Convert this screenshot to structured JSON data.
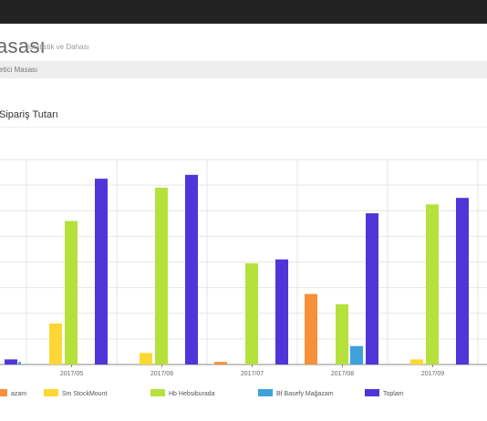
{
  "header": {
    "title": "asası",
    "subtitle": "istatistik ve Dahası"
  },
  "breadcrumb": {
    "text": "etici Masası"
  },
  "portlet": {
    "title": "Sipariş Tutarı"
  },
  "colors": {
    "topbar": "#222222",
    "breadcrumb_bg": "#eeeeee"
  },
  "chart_data": {
    "type": "bar",
    "title": "Sipariş Tutarı",
    "xlabel": "",
    "ylabel": "",
    "categories": [
      "2017/05",
      "2017/06",
      "2017/07",
      "2017/08",
      "2017/09"
    ],
    "y_gridline_count": 8,
    "ylim": [
      0,
      8
    ],
    "grid": true,
    "legend_position": "bottom",
    "series": [
      {
        "name": "azam",
        "color": "#f7903a",
        "values": [
          0,
          0,
          0.1,
          2.75,
          0
        ]
      },
      {
        "name": "Sm StockMount",
        "color": "#fdd835",
        "values": [
          1.6,
          0.45,
          0,
          0,
          0.2
        ]
      },
      {
        "name": "Hb Hebsiburada",
        "color": "#b5e13d",
        "values": [
          5.6,
          6.9,
          3.95,
          2.35,
          6.25
        ]
      },
      {
        "name": "Bf Basefy Mağazam",
        "color": "#3fa1dc",
        "values": [
          0,
          0,
          0,
          0.72,
          0
        ]
      },
      {
        "name": "Toplam",
        "color": "#5135d9",
        "values": [
          7.25,
          7.4,
          4.1,
          5.9,
          6.5
        ]
      }
    ],
    "partial_left": {
      "value": 0.2
    }
  }
}
